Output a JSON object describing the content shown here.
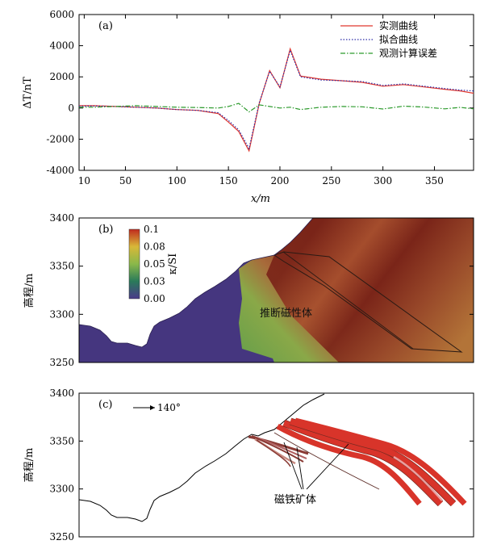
{
  "panel_a": {
    "label": "(a)",
    "ylabel": "ΔT/nT",
    "xlabel": "x/m",
    "legend": [
      "实测曲线",
      "拟合曲线",
      "观测计算误差"
    ],
    "colors": {
      "measured": "#e0372f",
      "fitted": "#2c2ca8",
      "error": "#2c9a2c"
    },
    "chart_data": {
      "type": "line",
      "xlim": [
        5,
        388
      ],
      "ylim": [
        -4000,
        6000
      ],
      "x_ticks": [
        10,
        50,
        100,
        150,
        200,
        250,
        300,
        350
      ],
      "y_ticks": [
        -4000,
        -2000,
        0,
        2000,
        4000,
        6000
      ],
      "series": [
        {
          "name": "实测曲线",
          "style": "solid",
          "x": [
            5,
            20,
            40,
            60,
            80,
            100,
            120,
            140,
            150,
            160,
            170,
            180,
            190,
            200,
            210,
            220,
            240,
            260,
            280,
            300,
            320,
            340,
            360,
            375,
            388
          ],
          "y": [
            150,
            150,
            100,
            50,
            0,
            -100,
            -150,
            -350,
            -900,
            -1500,
            -2750,
            300,
            2400,
            1300,
            3800,
            2050,
            1850,
            1750,
            1650,
            1400,
            1500,
            1350,
            1200,
            1100,
            950
          ]
        },
        {
          "name": "拟合曲线",
          "style": "dotted",
          "x": [
            5,
            20,
            40,
            60,
            80,
            100,
            120,
            140,
            150,
            160,
            170,
            180,
            190,
            200,
            210,
            220,
            240,
            260,
            280,
            300,
            320,
            340,
            360,
            375,
            388
          ],
          "y": [
            120,
            130,
            100,
            50,
            0,
            -100,
            -150,
            -300,
            -800,
            -1400,
            -2600,
            350,
            2350,
            1350,
            3700,
            2000,
            1800,
            1750,
            1700,
            1450,
            1550,
            1400,
            1250,
            1150,
            1100
          ]
        },
        {
          "name": "观测计算误差",
          "style": "dashdot",
          "x": [
            5,
            20,
            40,
            60,
            80,
            100,
            120,
            140,
            150,
            160,
            170,
            180,
            190,
            200,
            210,
            220,
            240,
            260,
            280,
            300,
            320,
            340,
            360,
            375,
            388
          ],
          "y": [
            50,
            50,
            100,
            150,
            100,
            50,
            30,
            0,
            100,
            300,
            -250,
            200,
            100,
            0,
            50,
            -100,
            50,
            100,
            80,
            -60,
            120,
            60,
            -50,
            40,
            -50
          ]
        }
      ]
    }
  },
  "panel_b": {
    "label": "(b)",
    "ylabel": "高程/m",
    "colorbar_label": "κ/SI",
    "colorbar_ticks": [
      "0.1",
      "0.08",
      "0.05",
      "0.03",
      "0.00"
    ],
    "annotation": "推断磁性体",
    "y_ticks": [
      3250,
      3300,
      3350,
      3400
    ],
    "ylim": [
      3250,
      3400
    ]
  },
  "panel_c": {
    "label": "(c)",
    "direction_label": "140°",
    "ylabel": "高程/m",
    "annotation": "磁铁矿体",
    "y_ticks": [
      3250,
      3300,
      3350,
      3400
    ],
    "ylim": [
      3250,
      3400
    ]
  }
}
